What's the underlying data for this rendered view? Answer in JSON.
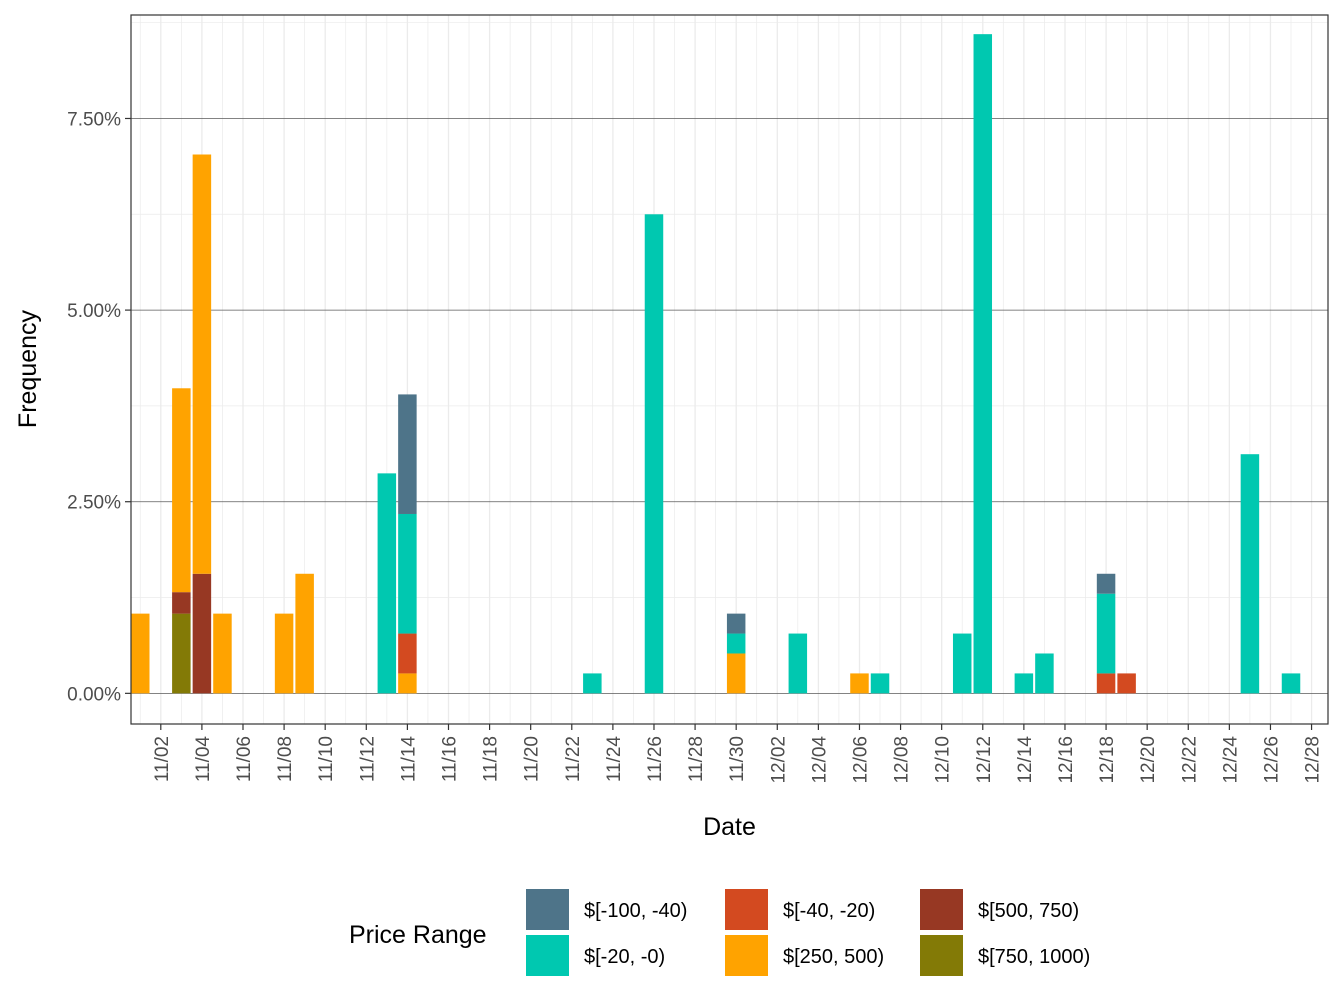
{
  "chart_data": {
    "type": "bar",
    "stacked": true,
    "xlabel": "Date",
    "ylabel": "Frequency",
    "ylim": [
      -0.4,
      8.85
    ],
    "y_ticks": [
      0,
      2.5,
      5,
      7.5
    ],
    "y_tick_labels": [
      "0.00%",
      "2.50%",
      "5.00%",
      "7.50%"
    ],
    "x_day_range": [
      -0.45,
      57.8
    ],
    "x_ticks": [
      {
        "day": 1,
        "label": "11/02"
      },
      {
        "day": 3,
        "label": "11/04"
      },
      {
        "day": 5,
        "label": "11/06"
      },
      {
        "day": 7,
        "label": "11/08"
      },
      {
        "day": 9,
        "label": "11/10"
      },
      {
        "day": 11,
        "label": "11/12"
      },
      {
        "day": 13,
        "label": "11/14"
      },
      {
        "day": 15,
        "label": "11/16"
      },
      {
        "day": 17,
        "label": "11/18"
      },
      {
        "day": 19,
        "label": "11/20"
      },
      {
        "day": 21,
        "label": "11/22"
      },
      {
        "day": 23,
        "label": "11/24"
      },
      {
        "day": 25,
        "label": "11/26"
      },
      {
        "day": 27,
        "label": "11/28"
      },
      {
        "day": 29,
        "label": "11/30"
      },
      {
        "day": 31,
        "label": "12/02"
      },
      {
        "day": 33,
        "label": "12/04"
      },
      {
        "day": 35,
        "label": "12/06"
      },
      {
        "day": 37,
        "label": "12/08"
      },
      {
        "day": 39,
        "label": "12/10"
      },
      {
        "day": 41,
        "label": "12/12"
      },
      {
        "day": 43,
        "label": "12/14"
      },
      {
        "day": 45,
        "label": "12/16"
      },
      {
        "day": 47,
        "label": "12/18"
      },
      {
        "day": 49,
        "label": "12/20"
      },
      {
        "day": 51,
        "label": "12/22"
      },
      {
        "day": 53,
        "label": "12/24"
      },
      {
        "day": 55,
        "label": "12/26"
      },
      {
        "day": 57,
        "label": "12/28"
      }
    ],
    "series": [
      {
        "name": "$[-100, -40)",
        "color": "#4e7489"
      },
      {
        "name": "$[-20, -0)",
        "color": "#00c8b0"
      },
      {
        "name": "$[-40, -20)",
        "color": "#d34a20"
      },
      {
        "name": "$[250, 500)",
        "color": "#ffa300"
      },
      {
        "name": "$[500, 750)",
        "color": "#973823"
      },
      {
        "name": "$[750, 1000)",
        "color": "#837a06"
      }
    ],
    "bars": [
      {
        "date": "11/01",
        "day": 0,
        "segments": [
          {
            "series": "$[250, 500)",
            "value": 1.04
          }
        ]
      },
      {
        "date": "11/03",
        "day": 2,
        "segments": [
          {
            "series": "$[750, 1000)",
            "value": 1.04
          },
          {
            "series": "$[500, 750)",
            "value": 0.28
          },
          {
            "series": "$[250, 500)",
            "value": 2.66
          }
        ]
      },
      {
        "date": "11/04",
        "day": 3,
        "segments": [
          {
            "series": "$[500, 750)",
            "value": 1.56
          },
          {
            "series": "$[250, 500)",
            "value": 5.47
          }
        ]
      },
      {
        "date": "11/05",
        "day": 4,
        "segments": [
          {
            "series": "$[250, 500)",
            "value": 1.04
          }
        ]
      },
      {
        "date": "11/08",
        "day": 7,
        "segments": [
          {
            "series": "$[250, 500)",
            "value": 1.04
          }
        ]
      },
      {
        "date": "11/09",
        "day": 8,
        "segments": [
          {
            "series": "$[250, 500)",
            "value": 1.56
          }
        ]
      },
      {
        "date": "11/13",
        "day": 12,
        "segments": [
          {
            "series": "$[-20, -0)",
            "value": 2.87
          }
        ]
      },
      {
        "date": "11/14",
        "day": 13,
        "segments": [
          {
            "series": "$[250, 500)",
            "value": 0.26
          },
          {
            "series": "$[-40, -20)",
            "value": 0.52
          },
          {
            "series": "$[-20, -0)",
            "value": 1.56
          },
          {
            "series": "$[-100, -40)",
            "value": 1.56
          }
        ]
      },
      {
        "date": "11/23",
        "day": 22,
        "segments": [
          {
            "series": "$[-20, -0)",
            "value": 0.26
          }
        ]
      },
      {
        "date": "11/26",
        "day": 25,
        "segments": [
          {
            "series": "$[-20, -0)",
            "value": 6.25
          }
        ]
      },
      {
        "date": "11/30",
        "day": 29,
        "segments": [
          {
            "series": "$[250, 500)",
            "value": 0.52
          },
          {
            "series": "$[-20, -0)",
            "value": 0.26
          },
          {
            "series": "$[-100, -40)",
            "value": 0.26
          }
        ]
      },
      {
        "date": "12/03",
        "day": 32,
        "segments": [
          {
            "series": "$[-20, -0)",
            "value": 0.78
          }
        ]
      },
      {
        "date": "12/06",
        "day": 35,
        "segments": [
          {
            "series": "$[250, 500)",
            "value": 0.26
          }
        ]
      },
      {
        "date": "12/07",
        "day": 36,
        "segments": [
          {
            "series": "$[-20, -0)",
            "value": 0.26
          }
        ]
      },
      {
        "date": "12/11",
        "day": 40,
        "segments": [
          {
            "series": "$[-20, -0)",
            "value": 0.78
          }
        ]
      },
      {
        "date": "12/12",
        "day": 41,
        "segments": [
          {
            "series": "$[-20, -0)",
            "value": 8.6
          }
        ]
      },
      {
        "date": "12/14",
        "day": 43,
        "segments": [
          {
            "series": "$[-20, -0)",
            "value": 0.26
          }
        ]
      },
      {
        "date": "12/15",
        "day": 44,
        "segments": [
          {
            "series": "$[-20, -0)",
            "value": 0.52
          }
        ]
      },
      {
        "date": "12/18",
        "day": 47,
        "segments": [
          {
            "series": "$[-40, -20)",
            "value": 0.26
          },
          {
            "series": "$[-20, -0)",
            "value": 1.04
          },
          {
            "series": "$[-100, -40)",
            "value": 0.26
          }
        ]
      },
      {
        "date": "12/19",
        "day": 48,
        "segments": [
          {
            "series": "$[-40, -20)",
            "value": 0.26
          }
        ]
      },
      {
        "date": "12/25",
        "day": 54,
        "segments": [
          {
            "series": "$[-20, -0)",
            "value": 3.12
          }
        ]
      },
      {
        "date": "12/27",
        "day": 56,
        "segments": [
          {
            "series": "$[-20, -0)",
            "value": 0.26
          }
        ]
      }
    ],
    "legend": {
      "title": "Price Range",
      "position": "bottom",
      "entries": [
        "$[-100, -40)",
        "$[-20, -0)",
        "$[-40, -20)",
        "$[250, 500)",
        "$[500, 750)",
        "$[750, 1000)"
      ]
    }
  }
}
